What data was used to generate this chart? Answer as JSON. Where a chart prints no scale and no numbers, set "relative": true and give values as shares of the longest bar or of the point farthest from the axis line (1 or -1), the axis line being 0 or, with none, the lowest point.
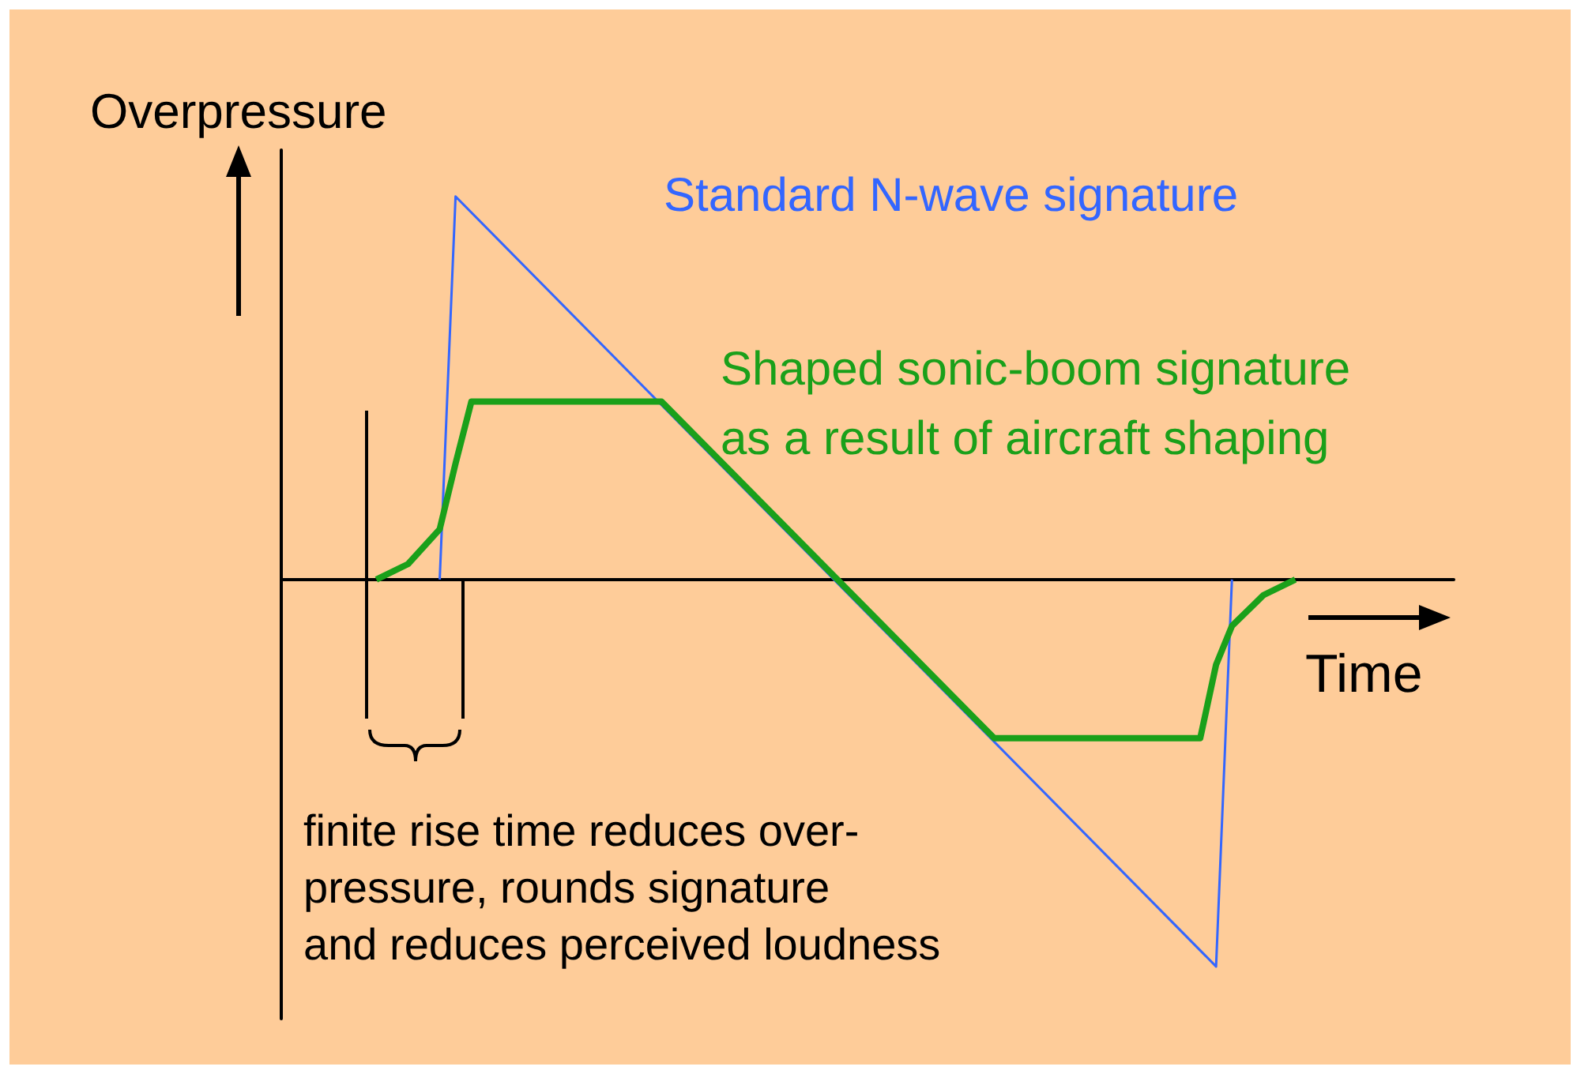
{
  "chart_data": {
    "type": "line",
    "relative": true,
    "xlabel": "Time",
    "ylabel": "Overpressure",
    "legend": false,
    "grid": false,
    "marker": "none",
    "categories": [
      null,
      null,
      null,
      null,
      null,
      null,
      null,
      null,
      null,
      null,
      null,
      null,
      null,
      null,
      null,
      null,
      null,
      null,
      null,
      null,
      null,
      null,
      null,
      null,
      null,
      null,
      null,
      null,
      null,
      null,
      null,
      null,
      null,
      null,
      null,
      null,
      null,
      null,
      null,
      null,
      null,
      null,
      null,
      null,
      null,
      null,
      null,
      null,
      null,
      null,
      null,
      null,
      null,
      null,
      null,
      null,
      null,
      null,
      null,
      null,
      null,
      null,
      null,
      null,
      null,
      null,
      null,
      null,
      null,
      null,
      null,
      null,
      null,
      null,
      null
    ],
    "series": [
      {
        "name": "Standard N-wave signature",
        "color": "#3366ff",
        "values": [
          null,
          null,
          null,
          null,
          null,
          null,
          null,
          null,
          null,
          null,
          0,
          0.99,
          null,
          null,
          null,
          null,
          null,
          null,
          null,
          null,
          null,
          null,
          null,
          null,
          null,
          null,
          null,
          null,
          null,
          null,
          null,
          null,
          null,
          null,
          null,
          null,
          null,
          null,
          null,
          null,
          null,
          null,
          null,
          null,
          null,
          null,
          null,
          null,
          null,
          null,
          null,
          null,
          null,
          null,
          null,
          null,
          null,
          null,
          null,
          -1,
          0,
          null,
          null,
          null,
          null,
          null,
          null,
          null,
          null,
          null,
          null,
          null,
          null,
          null,
          null
        ]
      },
      {
        "name": "Shaped sonic-boom signature\nas a result of aircraft shaping",
        "color": "#1aa01a",
        "values": [
          null,
          null,
          null,
          null,
          null,
          null,
          0,
          null,
          0.04,
          null,
          0.13,
          0.3,
          0.46,
          null,
          null,
          null,
          null,
          null,
          null,
          null,
          null,
          null,
          null,
          null,
          0.46,
          null,
          null,
          null,
          null,
          null,
          null,
          null,
          null,
          null,
          null,
          null,
          null,
          null,
          null,
          null,
          null,
          null,
          null,
          null,
          null,
          -0.41,
          null,
          null,
          null,
          null,
          null,
          null,
          null,
          null,
          null,
          null,
          null,
          null,
          -0.41,
          -0.22,
          -0.12,
          null,
          -0.04,
          null,
          0,
          null,
          null,
          null,
          null,
          null,
          null,
          null,
          null,
          null,
          null
        ]
      }
    ],
    "annotations": [
      "finite rise time reduces over-\npressure, rounds signature\nand reduces perceived loudness"
    ]
  }
}
